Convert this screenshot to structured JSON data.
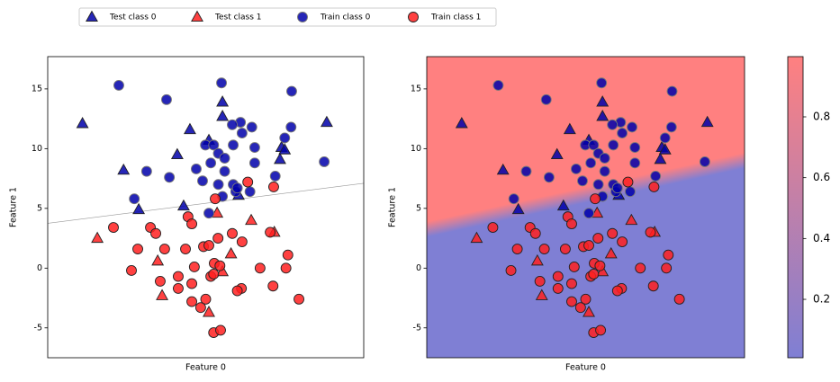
{
  "chart_data": [
    {
      "type": "scatter",
      "xlabel": "Feature 0",
      "ylabel": "Feature 1",
      "xlim": [
        0,
        10
      ],
      "ylim": [
        -7.5,
        17.7
      ],
      "yticks": [
        -5,
        0,
        5,
        10,
        15
      ],
      "decision_line": {
        "x": [
          0,
          10
        ],
        "y": [
          3.75,
          7.1
        ]
      },
      "series": [
        {
          "name": "Test class 0",
          "marker": "triangle",
          "color": "#0000aa",
          "x": [
            1.1,
            2.4,
            2.88,
            4.5,
            4.1,
            4.3,
            5.1,
            5.53,
            5.53,
            6.04,
            7.4,
            7.35,
            8.83,
            7.5
          ],
          "values": [
            12.1,
            8.2,
            4.9,
            11.6,
            9.5,
            5.2,
            10.7,
            13.9,
            12.7,
            6.1,
            10.1,
            9.1,
            12.2,
            9.9
          ]
        },
        {
          "name": "Test class 1",
          "marker": "triangle",
          "color": "#ff2020",
          "x": [
            1.57,
            3.48,
            3.62,
            5.1,
            5.36,
            5.53,
            5.8,
            6.44,
            7.17
          ],
          "values": [
            2.5,
            0.6,
            -2.3,
            -3.7,
            4.6,
            -0.3,
            1.2,
            4.0,
            3.0
          ]
        },
        {
          "name": "Train class 0",
          "marker": "circle",
          "color": "#0000aa",
          "x": [
            2.25,
            3.76,
            5.5,
            7.72,
            6.1,
            5.84,
            6.15,
            6.46,
            7.5,
            7.7,
            4.99,
            5.25,
            5.87,
            6.55,
            5.4,
            5.6,
            4.7,
            3.13,
            5.16,
            6.55,
            5.6,
            8.75,
            3.85,
            4.9,
            5.4,
            5.87,
            5.95,
            6.4,
            2.74,
            5.1,
            5.53,
            7.2,
            6.0
          ],
          "values": [
            15.3,
            14.1,
            15.5,
            14.8,
            12.2,
            12.0,
            11.3,
            11.8,
            10.9,
            11.8,
            10.3,
            10.3,
            10.3,
            10.1,
            9.6,
            9.2,
            8.3,
            8.1,
            8.8,
            8.8,
            8.1,
            8.9,
            7.6,
            7.3,
            7.0,
            7.0,
            6.4,
            6.4,
            5.8,
            4.6,
            6.0,
            7.7,
            6.7
          ]
        },
        {
          "name": "Train class 1",
          "marker": "circle",
          "color": "#ff2020",
          "x": [
            2.08,
            2.65,
            2.85,
            3.25,
            3.42,
            3.7,
            3.56,
            4.13,
            4.13,
            4.36,
            4.44,
            4.56,
            4.56,
            4.64,
            4.56,
            4.84,
            5.0,
            4.93,
            5.1,
            5.16,
            5.3,
            5.39,
            5.27,
            5.45,
            5.25,
            5.25,
            5.47,
            5.84,
            6.15,
            6.13,
            6.0,
            6.33,
            6.72,
            7.04,
            7.13,
            7.54,
            7.6,
            7.95,
            7.15
          ],
          "values": [
            3.4,
            -0.2,
            1.6,
            3.4,
            2.9,
            1.6,
            -1.1,
            -1.7,
            -0.7,
            1.6,
            4.3,
            3.7,
            -1.3,
            0.1,
            -2.8,
            -3.3,
            -2.6,
            1.8,
            1.9,
            -0.7,
            5.8,
            2.5,
            0.4,
            0.2,
            -0.5,
            -5.4,
            -5.2,
            2.9,
            2.2,
            -1.7,
            -1.9,
            7.2,
            0.0,
            3.0,
            -1.5,
            0.0,
            1.1,
            -2.6,
            6.8
          ]
        }
      ]
    },
    {
      "type": "scatter",
      "xlabel": "Feature 0",
      "ylabel": "Feature 1",
      "xlim": [
        0,
        10
      ],
      "ylim": [
        -7.5,
        17.7
      ],
      "yticks": [
        -5,
        0,
        5,
        10,
        15
      ],
      "colormap": [
        "#7f7fd4",
        "#ff8080"
      ],
      "colorbar": {
        "lim": [
          0.008,
          0.998
        ],
        "ticks": [
          0.2,
          0.4,
          0.6,
          0.8
        ]
      },
      "series": [
        {
          "name": "Test class 0",
          "marker": "triangle",
          "color": "#0000aa",
          "x": [
            1.1,
            2.4,
            2.88,
            4.5,
            4.1,
            4.3,
            5.1,
            5.53,
            5.53,
            6.04,
            7.4,
            7.35,
            8.83,
            7.5
          ],
          "values": [
            12.1,
            8.2,
            4.9,
            11.6,
            9.5,
            5.2,
            10.7,
            13.9,
            12.7,
            6.1,
            10.1,
            9.1,
            12.2,
            9.9
          ]
        },
        {
          "name": "Test class 1",
          "marker": "triangle",
          "color": "#ff2020",
          "x": [
            1.57,
            3.48,
            3.62,
            5.1,
            5.36,
            5.53,
            5.8,
            6.44,
            7.17
          ],
          "values": [
            2.5,
            0.6,
            -2.3,
            -3.7,
            4.6,
            -0.3,
            1.2,
            4.0,
            3.0
          ]
        },
        {
          "name": "Train class 0",
          "marker": "circle",
          "color": "#0000aa",
          "x": [
            2.25,
            3.76,
            5.5,
            7.72,
            6.1,
            5.84,
            6.15,
            6.46,
            7.5,
            7.7,
            4.99,
            5.25,
            5.87,
            6.55,
            5.4,
            5.6,
            4.7,
            3.13,
            5.16,
            6.55,
            5.6,
            8.75,
            3.85,
            4.9,
            5.4,
            5.87,
            5.95,
            6.4,
            2.74,
            5.1,
            5.53,
            7.2,
            6.0
          ],
          "values": [
            15.3,
            14.1,
            15.5,
            14.8,
            12.2,
            12.0,
            11.3,
            11.8,
            10.9,
            11.8,
            10.3,
            10.3,
            10.3,
            10.1,
            9.6,
            9.2,
            8.3,
            8.1,
            8.8,
            8.8,
            8.1,
            8.9,
            7.6,
            7.3,
            7.0,
            7.0,
            6.4,
            6.4,
            5.8,
            4.6,
            6.0,
            7.7,
            6.7
          ]
        },
        {
          "name": "Train class 1",
          "marker": "circle",
          "color": "#ff2020",
          "x": [
            2.08,
            2.65,
            2.85,
            3.25,
            3.42,
            3.7,
            3.56,
            4.13,
            4.13,
            4.36,
            4.44,
            4.56,
            4.56,
            4.64,
            4.56,
            4.84,
            5.0,
            4.93,
            5.1,
            5.16,
            5.3,
            5.39,
            5.27,
            5.45,
            5.25,
            5.25,
            5.47,
            5.84,
            6.15,
            6.13,
            6.0,
            6.33,
            6.72,
            7.04,
            7.13,
            7.54,
            7.6,
            7.95,
            7.15
          ],
          "values": [
            3.4,
            -0.2,
            1.6,
            3.4,
            2.9,
            1.6,
            -1.1,
            -1.7,
            -0.7,
            1.6,
            4.3,
            3.7,
            -1.3,
            0.1,
            -2.8,
            -3.3,
            -2.6,
            1.8,
            1.9,
            -0.7,
            5.8,
            2.5,
            0.4,
            0.2,
            -0.5,
            -5.4,
            -5.2,
            2.9,
            2.2,
            -1.7,
            -1.9,
            7.2,
            0.0,
            3.0,
            -1.5,
            0.0,
            1.1,
            -2.6,
            6.8
          ]
        }
      ]
    }
  ]
}
